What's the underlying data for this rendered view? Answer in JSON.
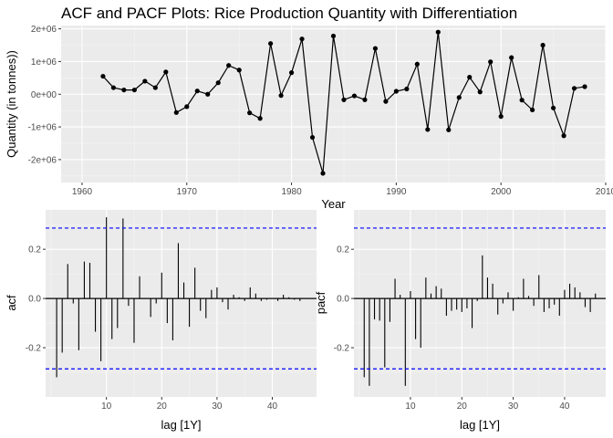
{
  "chart_data": [
    {
      "type": "line",
      "title": "ACF and PACF Plots: Rice Production Quantity with Differentiation",
      "xlabel": "Year",
      "ylabel": "Quantity (in tonnes))",
      "xlim": [
        1958,
        2010
      ],
      "ylim": [
        -2700000,
        2100000
      ],
      "x_ticks": [
        1960,
        1970,
        1980,
        1990,
        2000,
        2010
      ],
      "x_tick_labels": [
        "1960",
        "1970",
        "1980",
        "1990",
        "2000",
        "2010"
      ],
      "y_ticks": [
        -2000000,
        -1000000,
        0,
        1000000,
        2000000
      ],
      "y_tick_labels": [
        "-2e+06",
        "-1e+06",
        "0e+00",
        "1e+06",
        "2e+06"
      ],
      "grid": true,
      "line_color": "#000000",
      "x": [
        1962,
        1963,
        1964,
        1965,
        1966,
        1967,
        1968,
        1969,
        1970,
        1971,
        1972,
        1973,
        1974,
        1975,
        1976,
        1977,
        1978,
        1979,
        1980,
        1981,
        1982,
        1983,
        1984,
        1985,
        1986,
        1987,
        1988,
        1989,
        1990,
        1991,
        1992,
        1993,
        1994,
        1995,
        1996,
        1997,
        1998,
        1999,
        2000,
        2001,
        2002,
        2003,
        2004,
        2005,
        2006,
        2007,
        2008
      ],
      "y": [
        550000,
        200000,
        130000,
        130000,
        400000,
        200000,
        680000,
        -560000,
        -380000,
        100000,
        0,
        350000,
        880000,
        740000,
        -570000,
        -740000,
        1550000,
        -40000,
        660000,
        1690000,
        -1320000,
        -2420000,
        1780000,
        -170000,
        -50000,
        -170000,
        1400000,
        -220000,
        90000,
        160000,
        920000,
        -1080000,
        1900000,
        -1090000,
        -100000,
        520000,
        70000,
        990000,
        -680000,
        1120000,
        -180000,
        -480000,
        1500000,
        -420000,
        -1270000,
        180000,
        230000
      ]
    },
    {
      "type": "bar",
      "xlabel": "lag [1Y]",
      "ylabel": "acf",
      "xlim": [
        -1,
        48
      ],
      "ylim": [
        -0.4,
        0.36
      ],
      "x_ticks": [
        10,
        20,
        30,
        40
      ],
      "x_tick_labels": [
        "10",
        "20",
        "30",
        "40"
      ],
      "y_ticks": [
        -0.2,
        0.0,
        0.2
      ],
      "y_tick_labels": [
        "-0.2",
        "0.0",
        "0.2"
      ],
      "confidence_bound": 0.286,
      "bound_color": "#0000ff",
      "grid": true,
      "lags": [
        1,
        2,
        3,
        4,
        5,
        6,
        7,
        8,
        9,
        10,
        11,
        12,
        13,
        14,
        15,
        16,
        17,
        18,
        19,
        20,
        21,
        22,
        23,
        24,
        25,
        26,
        27,
        28,
        29,
        30,
        31,
        32,
        33,
        34,
        35,
        36,
        37,
        38,
        39,
        40,
        41,
        42,
        43,
        44,
        45,
        46
      ],
      "values": [
        -0.32,
        -0.22,
        0.14,
        -0.02,
        -0.21,
        0.15,
        0.145,
        -0.135,
        -0.255,
        0.33,
        -0.165,
        -0.12,
        0.325,
        -0.03,
        -0.18,
        0.09,
        0.0,
        -0.075,
        -0.02,
        0.105,
        -0.1,
        -0.17,
        0.225,
        0.065,
        -0.115,
        0.125,
        -0.05,
        -0.08,
        0.035,
        0.045,
        -0.015,
        -0.045,
        0.015,
        0.005,
        -0.01,
        0.045,
        0.02,
        -0.01,
        -0.005,
        0.0,
        -0.01,
        0.015,
        0.005,
        -0.005,
        -0.01,
        0.0
      ]
    },
    {
      "type": "bar",
      "xlabel": "lag [1Y]",
      "ylabel": "pacf",
      "xlim": [
        -1,
        48
      ],
      "ylim": [
        -0.4,
        0.36
      ],
      "x_ticks": [
        10,
        20,
        30,
        40
      ],
      "x_tick_labels": [
        "10",
        "20",
        "30",
        "40"
      ],
      "y_ticks": [
        -0.2,
        0.0,
        0.2
      ],
      "y_tick_labels": [
        "-0.2",
        "0.0",
        "0.2"
      ],
      "confidence_bound": 0.286,
      "bound_color": "#0000ff",
      "grid": true,
      "lags": [
        1,
        2,
        3,
        4,
        5,
        6,
        7,
        8,
        9,
        10,
        11,
        12,
        13,
        14,
        15,
        16,
        17,
        18,
        19,
        20,
        21,
        22,
        23,
        24,
        25,
        26,
        27,
        28,
        29,
        30,
        31,
        32,
        33,
        34,
        35,
        36,
        37,
        38,
        39,
        40,
        41,
        42,
        43,
        44,
        45,
        46
      ],
      "values": [
        -0.32,
        -0.355,
        -0.085,
        -0.09,
        -0.28,
        -0.095,
        0.08,
        0.015,
        -0.355,
        0.03,
        -0.165,
        -0.2,
        0.085,
        0.02,
        0.05,
        0.04,
        -0.07,
        -0.05,
        -0.045,
        -0.055,
        -0.04,
        -0.12,
        -0.01,
        0.175,
        0.085,
        0.06,
        -0.065,
        -0.02,
        0.025,
        -0.05,
        0.005,
        0.08,
        0.01,
        -0.03,
        0.095,
        -0.055,
        -0.04,
        -0.025,
        -0.07,
        0.035,
        0.06,
        0.045,
        0.025,
        -0.035,
        -0.055,
        0.02
      ]
    }
  ]
}
